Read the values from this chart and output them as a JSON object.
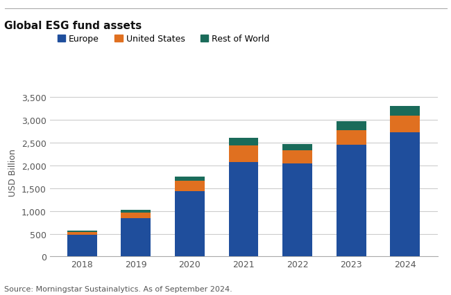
{
  "title": "Global ESG fund assets",
  "ylabel": "USD Billion",
  "source": "Source: Morningstar Sustainalytics. As of September 2024.",
  "years": [
    "2018",
    "2019",
    "2020",
    "2021",
    "2022",
    "2023",
    "2024"
  ],
  "europe": [
    475,
    840,
    1430,
    2080,
    2050,
    2460,
    2730
  ],
  "united_states": [
    60,
    130,
    230,
    360,
    290,
    320,
    370
  ],
  "rest_of_world": [
    35,
    55,
    95,
    165,
    130,
    185,
    200
  ],
  "colors": {
    "europe": "#1f4e9c",
    "united_states": "#e07020",
    "rest_of_world": "#1a6b5a"
  },
  "legend_labels": [
    "Europe",
    "United States",
    "Rest of World"
  ],
  "ylim": [
    0,
    3700
  ],
  "yticks": [
    0,
    500,
    1000,
    1500,
    2000,
    2500,
    3000,
    3500
  ],
  "ytick_labels": [
    "0",
    "500",
    "1,000",
    "1,500",
    "2,000",
    "2,500",
    "3,000",
    "3,500"
  ],
  "background_color": "#ffffff",
  "bar_width": 0.55,
  "title_fontsize": 11,
  "axis_fontsize": 9,
  "legend_fontsize": 9,
  "source_fontsize": 8
}
